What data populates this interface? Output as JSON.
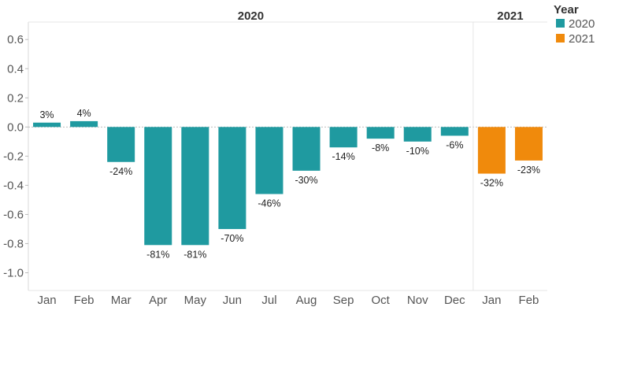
{
  "chart_data": {
    "type": "bar",
    "groups": [
      {
        "label": "2020",
        "categories": [
          "Jan",
          "Feb",
          "Mar",
          "Apr",
          "May",
          "Jun",
          "Jul",
          "Aug",
          "Sep",
          "Oct",
          "Nov",
          "Dec"
        ]
      },
      {
        "label": "2021",
        "categories": [
          "Jan",
          "Feb"
        ]
      }
    ],
    "categories": [
      "Jan",
      "Feb",
      "Mar",
      "Apr",
      "May",
      "Jun",
      "Jul",
      "Aug",
      "Sep",
      "Oct",
      "Nov",
      "Dec",
      "Jan",
      "Feb"
    ],
    "series_index": [
      0,
      0,
      0,
      0,
      0,
      0,
      0,
      0,
      0,
      0,
      0,
      0,
      1,
      1
    ],
    "values": [
      0.03,
      0.04,
      -0.24,
      -0.81,
      -0.81,
      -0.7,
      -0.46,
      -0.3,
      -0.14,
      -0.08,
      -0.1,
      -0.06,
      -0.32,
      -0.23
    ],
    "data_labels": [
      "3%",
      "4%",
      "-24%",
      "-81%",
      "-81%",
      "-70%",
      "-46%",
      "-30%",
      "-14%",
      "-8%",
      "-10%",
      "-6%",
      "-32%",
      "-23%"
    ],
    "series": [
      {
        "name": "2020",
        "color": "#1f9aa0"
      },
      {
        "name": "2021",
        "color": "#f08a0c"
      }
    ],
    "legend": {
      "title": "Year",
      "placement": "top-right"
    },
    "yticks": [
      0.6,
      0.4,
      0.2,
      0.0,
      -0.2,
      -0.4,
      -0.6,
      -0.8,
      -1.0
    ],
    "ytick_labels": [
      "0.6",
      "0.4",
      "0.2",
      "0.0",
      "-0.2",
      "-0.4",
      "-0.6",
      "-0.8",
      "-1.0"
    ],
    "ylim": [
      -1.1,
      0.72
    ],
    "title": "",
    "xlabel": "",
    "ylabel": ""
  }
}
